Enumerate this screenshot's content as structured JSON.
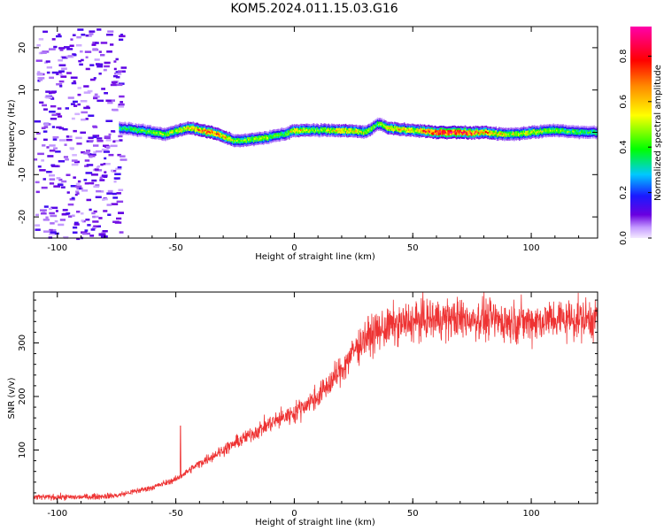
{
  "title": "KOM5.2024.011.15.03.G16",
  "chart_data": [
    {
      "type": "heatmap",
      "xlabel": "Height of straight line (km)",
      "ylabel": "Frequency (Hz)",
      "xlim": [
        -110,
        128
      ],
      "ylim": [
        -25,
        25
      ],
      "x_ticks": [
        -100,
        -50,
        0,
        50,
        100
      ],
      "y_ticks": [
        -20,
        -10,
        0,
        10,
        20
      ],
      "colorbar": {
        "label": "Normalized spectral amplitude",
        "range": [
          0,
          0.93
        ],
        "ticks": [
          "0.0",
          "0.2",
          "0.4",
          "0.6",
          "0.8"
        ],
        "tick_values": [
          0,
          0.2,
          0.4,
          0.6,
          0.8
        ]
      },
      "signal_track": {
        "x": [
          -73,
          -65,
          -55,
          -45,
          -35,
          -25,
          -15,
          -5,
          0,
          10,
          20,
          30,
          35,
          40,
          50,
          60,
          70,
          80,
          90,
          100,
          110,
          120,
          128
        ],
        "freq": [
          1,
          0.5,
          -0.5,
          1,
          0,
          -2,
          -1.5,
          -0.5,
          0.5,
          0.5,
          0.5,
          0,
          2,
          1,
          0.5,
          0,
          0,
          0,
          -0.5,
          0,
          0.5,
          0,
          0
        ],
        "amp": [
          0.35,
          0.4,
          0.45,
          0.55,
          0.75,
          0.45,
          0.5,
          0.4,
          0.6,
          0.45,
          0.6,
          0.5,
          0.4,
          0.6,
          0.55,
          0.85,
          0.8,
          0.65,
          0.5,
          0.55,
          0.45,
          0.4,
          0.35
        ]
      },
      "noise_region": {
        "x_range": [
          -110,
          -73
        ],
        "amplitude": 0.1
      }
    },
    {
      "type": "line",
      "xlabel": "Height of straight line (km)",
      "ylabel": "SNR (v/v)",
      "xlim": [
        -110,
        128
      ],
      "ylim": [
        0,
        395
      ],
      "x_ticks": [
        -100,
        -50,
        0,
        50,
        100
      ],
      "y_ticks": [
        100,
        200,
        300
      ],
      "series_color": "#ee3333",
      "trend": {
        "x": [
          -110,
          -90,
          -75,
          -60,
          -50,
          -40,
          -30,
          -20,
          -10,
          0,
          10,
          20,
          25,
          30,
          40,
          50,
          60,
          70,
          80,
          90,
          100,
          110,
          128
        ],
        "y": [
          12,
          12,
          15,
          30,
          45,
          75,
          100,
          125,
          150,
          170,
          200,
          250,
          285,
          310,
          330,
          340,
          345,
          345,
          345,
          340,
          340,
          345,
          345
        ]
      },
      "spike": {
        "x": -48,
        "y": 145
      }
    }
  ]
}
